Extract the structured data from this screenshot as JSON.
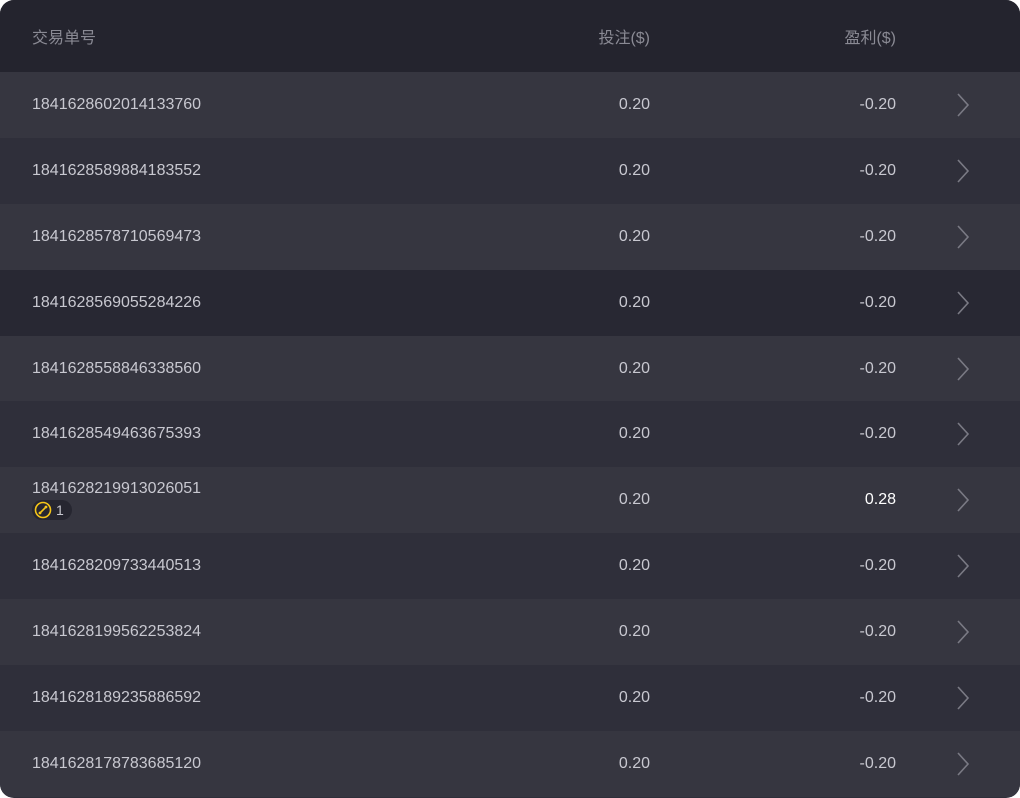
{
  "header": {
    "order_no": "交易单号",
    "bet": "投注($)",
    "profit": "盈利($)"
  },
  "rows": [
    {
      "id": "1841628602014133760",
      "bet": "0.20",
      "profit": "-0.20"
    },
    {
      "id": "1841628589884183552",
      "bet": "0.20",
      "profit": "-0.20"
    },
    {
      "id": "1841628578710569473",
      "bet": "0.20",
      "profit": "-0.20"
    },
    {
      "id": "1841628569055284226",
      "bet": "0.20",
      "profit": "-0.20"
    },
    {
      "id": "1841628558846338560",
      "bet": "0.20",
      "profit": "-0.20"
    },
    {
      "id": "1841628549463675393",
      "bet": "0.20",
      "profit": "-0.20"
    },
    {
      "id": "1841628219913026051",
      "bet": "0.20",
      "profit": "0.28",
      "badge": {
        "icon": "free-spin-icon",
        "count": "1"
      }
    },
    {
      "id": "1841628209733440513",
      "bet": "0.20",
      "profit": "-0.20"
    },
    {
      "id": "1841628199562253824",
      "bet": "0.20",
      "profit": "-0.20"
    },
    {
      "id": "1841628189235886592",
      "bet": "0.20",
      "profit": "-0.20"
    },
    {
      "id": "1841628178783685120",
      "bet": "0.20",
      "profit": "-0.20"
    }
  ],
  "colors": {
    "accent": "#f5c518",
    "header_bg": "#24242e",
    "positive": "#ffffff"
  }
}
